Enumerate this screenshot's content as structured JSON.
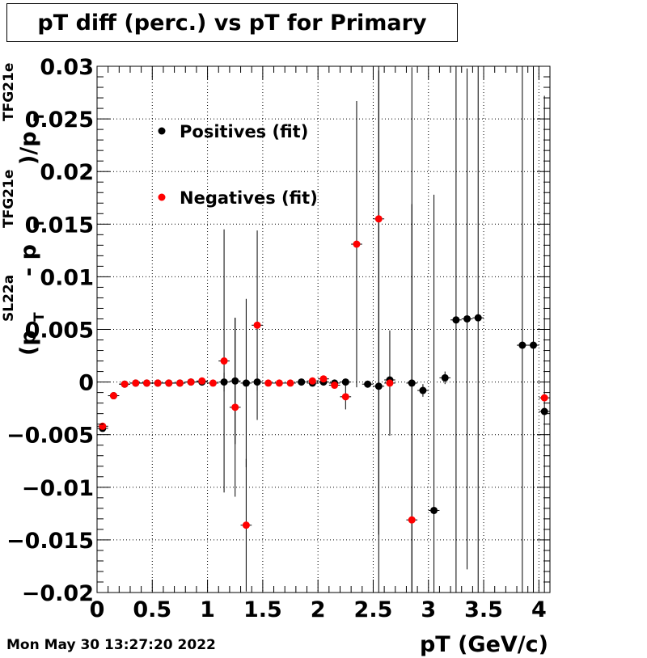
{
  "chart_data": {
    "type": "scatter",
    "title": "pT diff (perc.) vs pT for Primary",
    "xlabel": "pT (GeV/c)",
    "ylabel": {
      "open": "(p",
      "sub1": "T",
      "sup1": "SL22a",
      "minus": " - p",
      "sub2": "T",
      "sup2": "TFG21e",
      "close": ")/p",
      "sub3": "T",
      "sup3": "TFG21e"
    },
    "xlim": [
      0,
      4.1
    ],
    "ylim": [
      -0.02,
      0.03
    ],
    "xticks": [
      0,
      0.5,
      1,
      1.5,
      2,
      2.5,
      3,
      3.5,
      4
    ],
    "xtick_labels": [
      "0",
      "0.5",
      "1",
      "1.5",
      "2",
      "2.5",
      "3",
      "3.5",
      "4"
    ],
    "yticks": [
      -0.02,
      -0.015,
      -0.01,
      -0.005,
      0,
      0.005,
      0.01,
      0.015,
      0.02,
      0.025,
      0.03
    ],
    "ytick_labels": [
      "−0.02",
      "−0.015",
      "−0.01",
      "−0.005",
      "0",
      "0.005",
      "0.01",
      "0.015",
      "0.02",
      "0.025",
      "0.03"
    ],
    "grid": true,
    "legend_position": "top-left",
    "series": [
      {
        "name": "Positives (fit)",
        "color": "#000000",
        "points": [
          {
            "x": 0.05,
            "y": -0.0044,
            "err": 0.0003
          },
          {
            "x": 0.15,
            "y": -0.0013,
            "err": 0.0002
          },
          {
            "x": 0.25,
            "y": -0.0002,
            "err": 0.0001
          },
          {
            "x": 0.35,
            "y": -0.0001,
            "err": 0.0001
          },
          {
            "x": 0.45,
            "y": -0.0001,
            "err": 0.0001
          },
          {
            "x": 0.55,
            "y": -0.0001,
            "err": 0.0001
          },
          {
            "x": 0.65,
            "y": -0.0001,
            "err": 0.0001
          },
          {
            "x": 0.75,
            "y": -0.0001,
            "err": 0.0001
          },
          {
            "x": 0.85,
            "y": 0.0,
            "err": 0.0001
          },
          {
            "x": 0.95,
            "y": 0.0,
            "err": 0.0001
          },
          {
            "x": 1.15,
            "y": 0.0,
            "err": 0.0009
          },
          {
            "x": 1.25,
            "y": 0.0001,
            "err": 0.006
          },
          {
            "x": 1.35,
            "y": -0.0001,
            "err": 0.008
          },
          {
            "x": 1.45,
            "y": 0.0,
            "err": 0.0008
          },
          {
            "x": 1.85,
            "y": 0.0,
            "err": 0.0001
          },
          {
            "x": 1.95,
            "y": -0.0001,
            "err": 0.0002
          },
          {
            "x": 2.05,
            "y": 0.0,
            "err": 0.0003
          },
          {
            "x": 2.15,
            "y": -0.0001,
            "err": 0.0002
          },
          {
            "x": 2.25,
            "y": 0.0,
            "err": 0.0003
          },
          {
            "x": 2.45,
            "y": -0.0002,
            "err": 0.0003
          },
          {
            "x": 2.55,
            "y": -0.0004,
            "err": 0.03
          },
          {
            "x": 2.65,
            "y": 0.0002,
            "err": 0.0003
          },
          {
            "x": 2.85,
            "y": -0.0001,
            "err": 0.03
          },
          {
            "x": 2.95,
            "y": -0.0008,
            "err": 0.0006
          },
          {
            "x": 3.05,
            "y": -0.0122,
            "err": 0.03
          },
          {
            "x": 3.15,
            "y": 0.0004,
            "err": 0.0006
          },
          {
            "x": 3.25,
            "y": 0.0059,
            "err": 0.03
          },
          {
            "x": 3.35,
            "y": 0.006,
            "err": 0.0238
          },
          {
            "x": 3.45,
            "y": 0.0061,
            "err": 0.03
          },
          {
            "x": 3.85,
            "y": 0.0035,
            "err": 0.03
          },
          {
            "x": 3.95,
            "y": 0.0035,
            "err": 0.03
          },
          {
            "x": 4.05,
            "y": -0.0028,
            "err": 0.03
          }
        ]
      },
      {
        "name": "Negatives (fit)",
        "color": "#ff0000",
        "points": [
          {
            "x": 0.05,
            "y": -0.0042,
            "err": 0.0002
          },
          {
            "x": 0.15,
            "y": -0.0013,
            "err": 0.0002
          },
          {
            "x": 0.25,
            "y": -0.0002,
            "err": 0.0001
          },
          {
            "x": 0.35,
            "y": -0.0001,
            "err": 0.0001
          },
          {
            "x": 0.45,
            "y": -0.0001,
            "err": 0.0001
          },
          {
            "x": 0.55,
            "y": -0.0001,
            "err": 0.0001
          },
          {
            "x": 0.65,
            "y": -0.0001,
            "err": 0.0001
          },
          {
            "x": 0.75,
            "y": -0.0001,
            "err": 0.0001
          },
          {
            "x": 0.85,
            "y": 0.0,
            "err": 0.0001
          },
          {
            "x": 0.95,
            "y": 0.0001,
            "err": 0.0001
          },
          {
            "x": 1.05,
            "y": -0.0001,
            "err": 0.0001
          },
          {
            "x": 1.15,
            "y": 0.002,
            "err": 0.0125
          },
          {
            "x": 1.25,
            "y": -0.0024,
            "err": 0.0085
          },
          {
            "x": 1.35,
            "y": -0.0136,
            "err": 0.0063
          },
          {
            "x": 1.45,
            "y": 0.0054,
            "err": 0.009
          },
          {
            "x": 1.55,
            "y": -0.0001,
            "err": 0.0001
          },
          {
            "x": 1.65,
            "y": -0.0001,
            "err": 0.0001
          },
          {
            "x": 1.75,
            "y": -0.0001,
            "err": 0.0001
          },
          {
            "x": 1.95,
            "y": 0.0001,
            "err": 0.0002
          },
          {
            "x": 2.05,
            "y": 0.0003,
            "err": 0.0002
          },
          {
            "x": 2.15,
            "y": -0.0003,
            "err": 0.0002
          },
          {
            "x": 2.25,
            "y": -0.0014,
            "err": 0.0012
          },
          {
            "x": 2.35,
            "y": 0.0131,
            "err": 0.0136
          },
          {
            "x": 2.55,
            "y": 0.0155,
            "err": 0.03
          },
          {
            "x": 2.65,
            "y": -0.0001,
            "err": 0.005
          },
          {
            "x": 2.85,
            "y": -0.0131,
            "err": 0.03
          },
          {
            "x": 4.05,
            "y": -0.0015,
            "err": 0.0003
          }
        ]
      }
    ]
  },
  "footer": {
    "timestamp": "Mon May 30 13:27:20 2022"
  }
}
